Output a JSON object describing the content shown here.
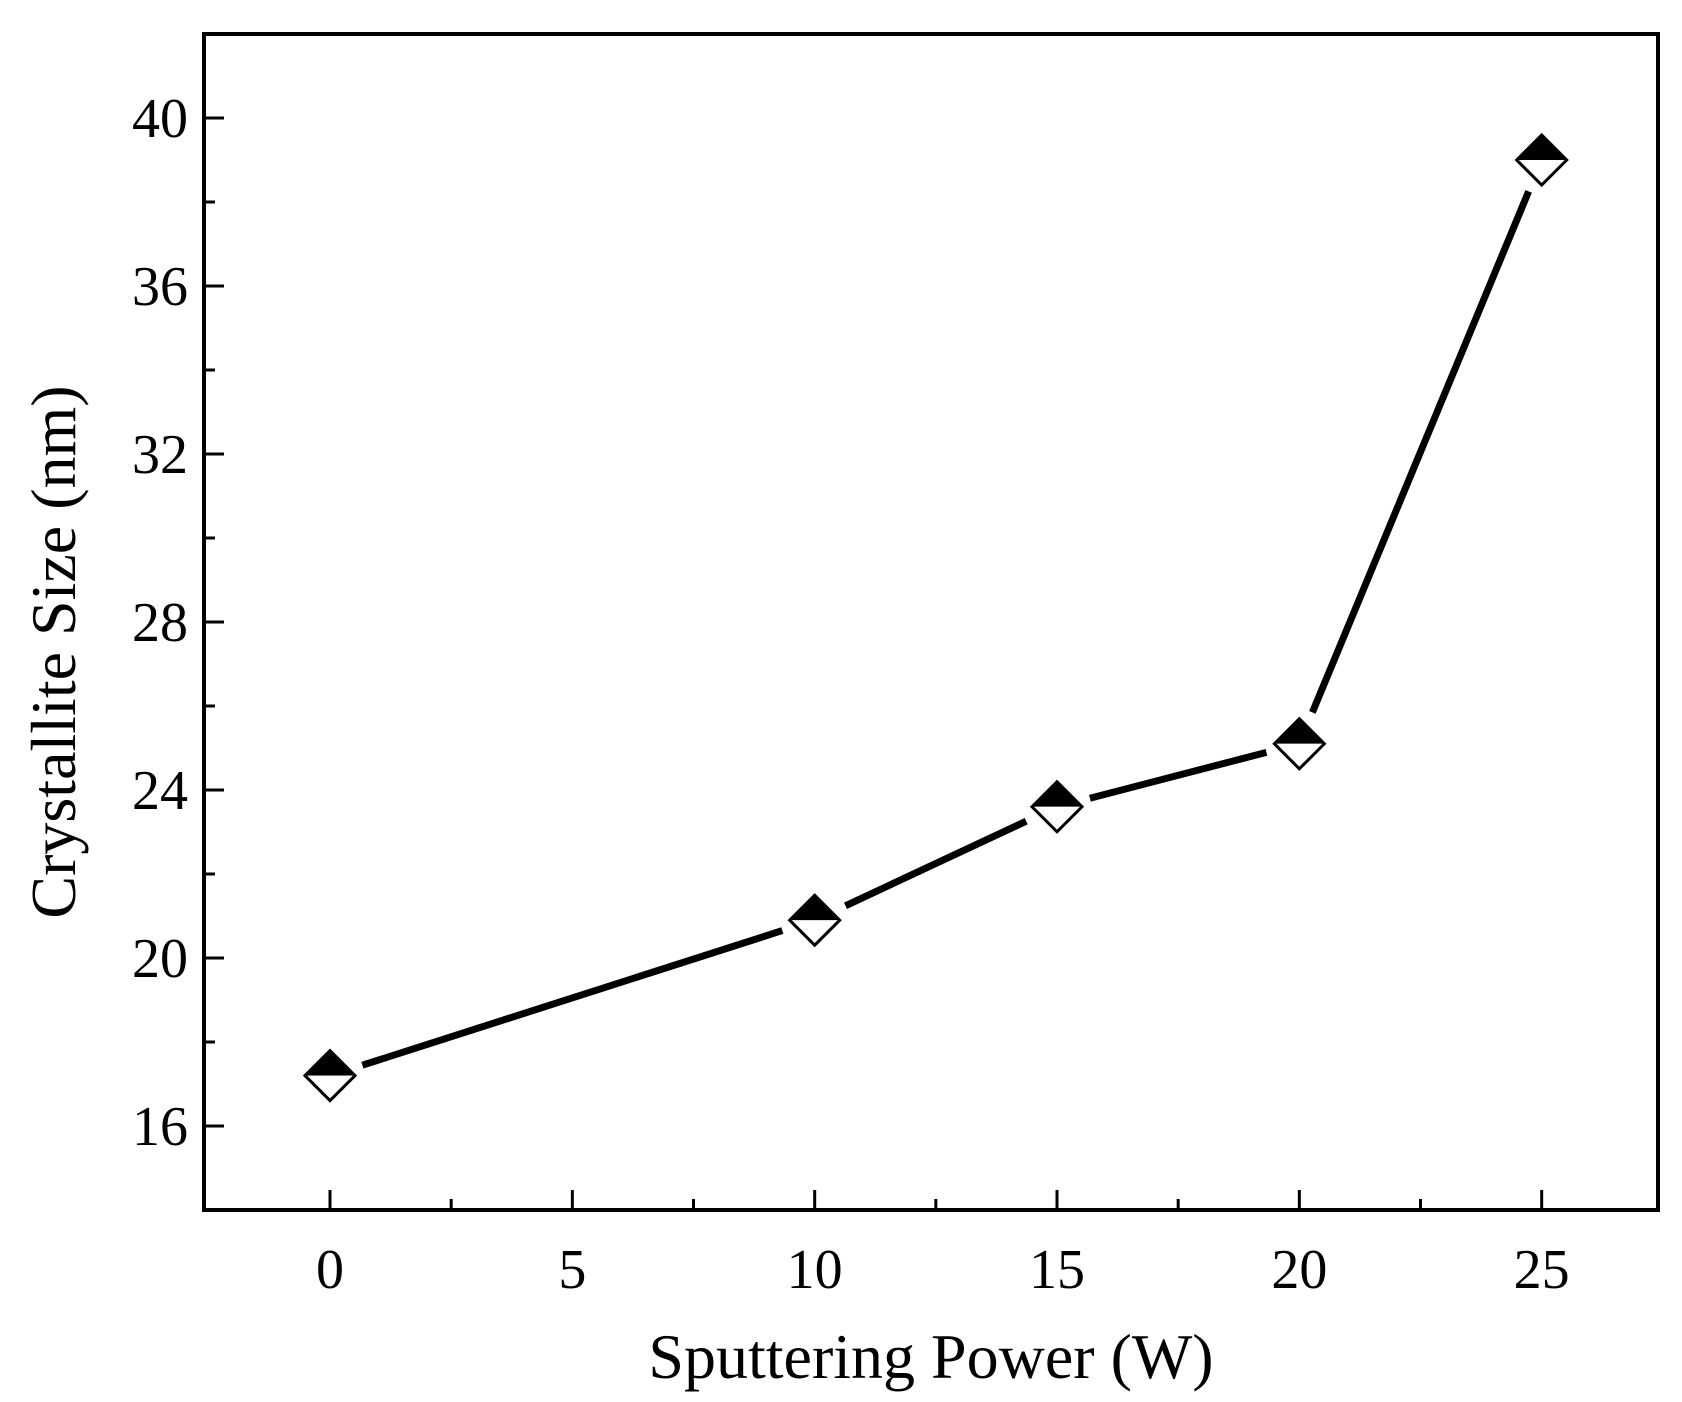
{
  "chart_data": {
    "type": "line",
    "title": "",
    "xlabel": "Sputtering Power (W)",
    "ylabel": "Crystallite Size (nm)",
    "xlim": [
      -2.6,
      27.4
    ],
    "ylim": [
      14.0,
      42.0
    ],
    "x_major_ticks": [
      0,
      5,
      10,
      15,
      20,
      25
    ],
    "x_minor_ticks": [
      2.5,
      7.5,
      12.5,
      17.5,
      22.5
    ],
    "x_tick_labels": [
      "0",
      "5",
      "10",
      "15",
      "20",
      "25"
    ],
    "y_major_ticks": [
      16,
      20,
      24,
      28,
      32,
      36,
      40
    ],
    "y_minor_ticks": [
      18,
      22,
      26,
      30,
      34,
      38
    ],
    "y_tick_labels": [
      "16",
      "20",
      "24",
      "28",
      "32",
      "36",
      "40"
    ],
    "grid": false,
    "series": [
      {
        "name": "Crystallite Size",
        "marker": "half-filled-diamond",
        "x": [
          0,
          10,
          15,
          20,
          25
        ],
        "y": [
          17.2,
          20.9,
          23.6,
          25.1,
          39.0
        ]
      }
    ],
    "colors": {
      "line": "#000000",
      "marker_fill_top": "#000000",
      "marker_fill_bottom": "#ffffff",
      "axes": "#000000"
    }
  }
}
